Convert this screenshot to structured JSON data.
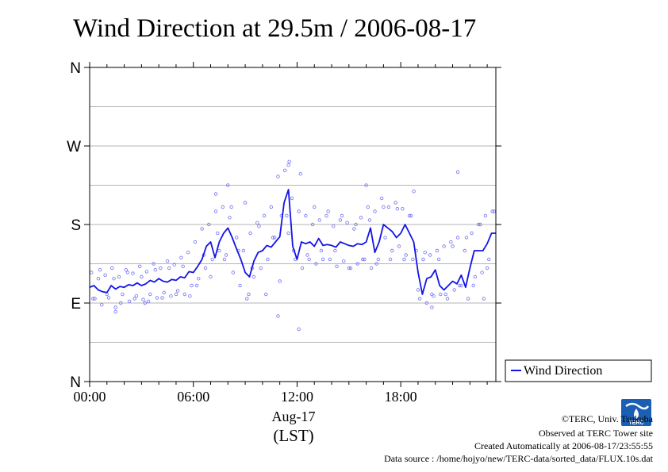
{
  "chart_data": {
    "type": "scatter",
    "title": "Wind Direction at 29.5m / 2006-08-17",
    "xlabel": "(LST)",
    "x_sublabel": "Aug-17",
    "ylabel": "",
    "x_ticks": [
      "00:00",
      "06:00",
      "12:00",
      "18:00"
    ],
    "x_tick_hours": [
      0,
      6,
      12,
      18
    ],
    "xlim": [
      0,
      23.5
    ],
    "y_ticks": [
      "N",
      "W",
      "S",
      "E",
      "N"
    ],
    "y_tick_degrees": [
      360,
      270,
      180,
      90,
      0
    ],
    "ylim": [
      0,
      360
    ],
    "grid_y_degrees": [
      45,
      90,
      135,
      180,
      225,
      270,
      315
    ],
    "legend": {
      "entries": [
        "Wind Direction"
      ],
      "placement": "right-bottom"
    },
    "series": [
      {
        "name": "Wind Direction",
        "style": "line",
        "color": "#1414e6",
        "x": [
          0.0,
          0.25,
          0.5,
          0.75,
          1.0,
          1.25,
          1.5,
          1.75,
          2.0,
          2.25,
          2.5,
          2.75,
          3.0,
          3.25,
          3.5,
          3.75,
          4.0,
          4.25,
          4.5,
          4.75,
          5.0,
          5.25,
          5.5,
          5.75,
          6.0,
          6.25,
          6.5,
          6.75,
          7.0,
          7.25,
          7.5,
          7.75,
          8.0,
          8.25,
          8.5,
          8.75,
          9.0,
          9.25,
          9.5,
          9.75,
          10.0,
          10.25,
          10.5,
          10.75,
          11.0,
          11.25,
          11.5,
          11.75,
          12.0,
          12.25,
          12.5,
          12.75,
          13.0,
          13.25,
          13.5,
          13.75,
          14.0,
          14.25,
          14.5,
          14.75,
          15.0,
          15.25,
          15.5,
          15.75,
          16.0,
          16.25,
          16.5,
          16.75,
          17.0,
          17.25,
          17.5,
          17.75,
          18.0,
          18.25,
          18.5,
          18.75,
          19.0,
          19.25,
          19.5,
          19.75,
          20.0,
          20.25,
          20.5,
          20.75,
          21.0,
          21.25,
          21.5,
          21.75,
          22.0,
          22.25,
          22.5,
          22.75,
          23.0,
          23.25,
          23.5
        ],
        "values": [
          108,
          110,
          105,
          103,
          102,
          110,
          106,
          109,
          108,
          111,
          110,
          113,
          110,
          112,
          116,
          114,
          118,
          115,
          114,
          117,
          116,
          120,
          119,
          126,
          125,
          132,
          140,
          155,
          160,
          142,
          160,
          170,
          176,
          165,
          152,
          140,
          125,
          120,
          138,
          148,
          150,
          156,
          154,
          160,
          166,
          205,
          220,
          155,
          140,
          160,
          158,
          160,
          155,
          164,
          156,
          157,
          156,
          154,
          160,
          158,
          156,
          155,
          158,
          157,
          160,
          176,
          148,
          160,
          180,
          176,
          172,
          165,
          170,
          180,
          170,
          160,
          125,
          100,
          118,
          120,
          128,
          110,
          105,
          110,
          115,
          112,
          122,
          108,
          130,
          150,
          150,
          150,
          158,
          170,
          170
        ]
      },
      {
        "name": "",
        "style": "scatter",
        "color": "#6f6ff5",
        "x": [
          0.1,
          0.3,
          0.5,
          0.7,
          0.9,
          1.1,
          1.3,
          1.5,
          1.7,
          1.9,
          2.1,
          2.3,
          2.5,
          2.7,
          2.9,
          3.1,
          3.3,
          3.5,
          3.7,
          3.9,
          4.1,
          4.3,
          4.5,
          4.7,
          4.9,
          5.1,
          5.3,
          5.5,
          5.7,
          5.9,
          6.1,
          6.3,
          6.5,
          6.7,
          6.9,
          7.1,
          7.3,
          7.5,
          7.7,
          7.9,
          8.1,
          8.3,
          8.5,
          8.7,
          8.9,
          9.1,
          9.3,
          9.5,
          9.7,
          9.9,
          10.1,
          10.3,
          10.5,
          10.7,
          10.9,
          11.1,
          11.3,
          11.5,
          11.7,
          11.9,
          12.1,
          12.3,
          12.5,
          12.7,
          12.9,
          13.1,
          13.3,
          13.5,
          13.7,
          13.9,
          14.1,
          14.3,
          14.5,
          14.7,
          14.9,
          15.1,
          15.3,
          15.5,
          15.7,
          15.9,
          16.1,
          16.3,
          16.5,
          16.7,
          16.9,
          17.1,
          17.3,
          17.5,
          17.7,
          17.9,
          18.1,
          18.3,
          18.5,
          18.7,
          18.9,
          19.1,
          19.3,
          19.5,
          19.7,
          19.9,
          20.1,
          20.3,
          20.5,
          20.7,
          20.9,
          21.1,
          21.3,
          21.5,
          21.7,
          21.9,
          22.1,
          22.3,
          22.5,
          22.7,
          22.9,
          23.1,
          23.3,
          0.2,
          0.6,
          1.0,
          1.4,
          1.8,
          2.2,
          2.6,
          3.0,
          3.4,
          3.8,
          4.2,
          4.6,
          5.0,
          5.4,
          5.8,
          6.2,
          6.6,
          7.0,
          7.4,
          7.8,
          8.2,
          8.6,
          9.0,
          9.4,
          9.8,
          10.2,
          10.6,
          11.0,
          11.4,
          11.8,
          12.2,
          12.6,
          13.0,
          13.4,
          13.8,
          14.2,
          14.6,
          15.0,
          15.4,
          15.8,
          16.2,
          16.6,
          17.0,
          17.4,
          17.8,
          18.2,
          18.6,
          19.0,
          19.4,
          19.8,
          20.2,
          20.6,
          21.0,
          21.4,
          21.8,
          22.2,
          22.6,
          23.0,
          23.4,
          8.0,
          11.5,
          11.55,
          16.0,
          18.75,
          7.3,
          9.2,
          10.9,
          12.1,
          21.3,
          1.5,
          3.2,
          19.8,
          22.8
        ],
        "values": [
          125,
          95,
          118,
          88,
          122,
          96,
          130,
          85,
          120,
          100,
          128,
          92,
          124,
          98,
          132,
          94,
          126,
          100,
          135,
          96,
          130,
          102,
          138,
          98,
          134,
          104,
          142,
          100,
          148,
          110,
          160,
          118,
          175,
          130,
          180,
          140,
          195,
          150,
          200,
          145,
          188,
          125,
          165,
          110,
          150,
          95,
          170,
          120,
          182,
          130,
          190,
          140,
          200,
          165,
          235,
          190,
          242,
          170,
          210,
          140,
          195,
          130,
          190,
          140,
          180,
          135,
          185,
          140,
          190,
          140,
          178,
          132,
          185,
          138,
          182,
          130,
          175,
          135,
          188,
          140,
          200,
          130,
          195,
          140,
          210,
          165,
          200,
          150,
          205,
          155,
          198,
          145,
          190,
          140,
          150,
          95,
          140,
          90,
          145,
          98,
          150,
          100,
          155,
          95,
          160,
          105,
          165,
          110,
          150,
          95,
          170,
          120,
          180,
          125,
          190,
          140,
          195,
          95,
          128,
          100,
          118,
          90,
          125,
          95,
          120,
          92,
          128,
          96,
          130,
          100,
          132,
          98,
          110,
          145,
          120,
          170,
          140,
          200,
          150,
          205,
          130,
          178,
          100,
          165,
          115,
          190,
          150,
          238,
          145,
          200,
          150,
          195,
          150,
          190,
          130,
          180,
          140,
          185,
          135,
          200,
          140,
          198,
          140,
          190,
          105,
          148,
          100,
          140,
          100,
          155,
          110,
          165,
          110,
          180,
          130,
          195,
          225,
          248,
          252,
          225,
          218,
          215,
          100,
          75,
          60,
          240,
          80,
          90,
          85,
          95
        ]
      }
    ]
  },
  "legend": {
    "label": "Wind Direction"
  },
  "credits": {
    "copyright": "©TERC, Univ. Tsukuba",
    "observed": "Observed at TERC Tower site",
    "created": "Created Automatically at 2006-08-17/23:55:55",
    "source": "Data source : /home/hojyo/new/TERC-data/sorted_data/FLUX.10s.dat"
  },
  "logo": {
    "text": "TERC"
  },
  "colors": {
    "line": "#1414e6",
    "points": "#6f6ff5",
    "grid": "#b4b4b4",
    "logo": "#1a5fb4"
  }
}
